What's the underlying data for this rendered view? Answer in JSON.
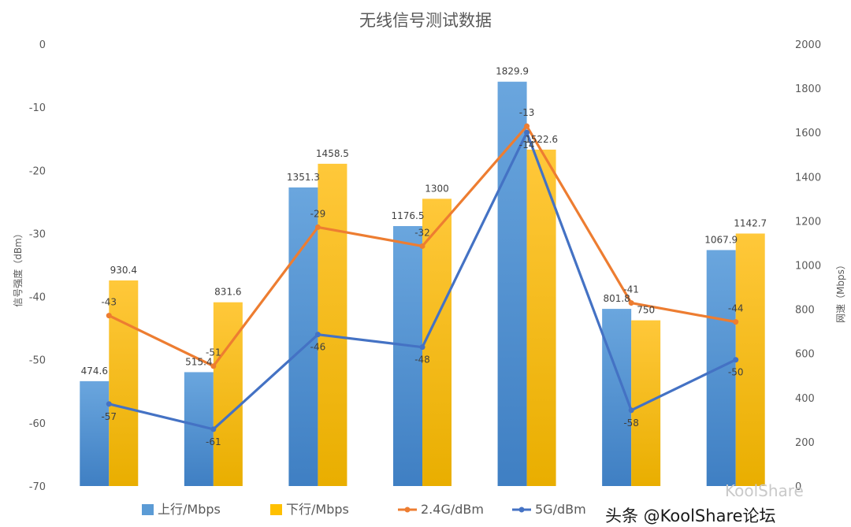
{
  "chart_data": {
    "type": "bar+line",
    "title": "无线信号测试数据",
    "y_left": {
      "label": "信号强度（dBm）",
      "ylim": [
        -70,
        0
      ],
      "ticks": [
        0,
        -10,
        -20,
        -30,
        -40,
        -50,
        -60,
        -70
      ]
    },
    "y_right": {
      "label": "网速（Mbps）",
      "ylim": [
        0,
        2000
      ],
      "ticks": [
        0,
        200,
        400,
        600,
        800,
        1000,
        1200,
        1400,
        1600,
        1800,
        2000
      ]
    },
    "categories": [
      "",
      "",
      "",
      "",
      "",
      "",
      ""
    ],
    "bar_series": [
      {
        "name": "上行/Mbps",
        "color": "#5b9bd5",
        "axis": "right",
        "values": [
          474.6,
          515.4,
          1351.3,
          1176.5,
          1829.9,
          801.8,
          1067.9
        ]
      },
      {
        "name": "下行/Mbps",
        "color": "#ffc000",
        "axis": "right",
        "values": [
          930.4,
          831.6,
          1458.5,
          1300,
          1522.6,
          750,
          1142.7
        ]
      }
    ],
    "line_series": [
      {
        "name": "2.4G/dBm",
        "color": "#ed7d31",
        "axis": "left",
        "values": [
          -43,
          -51,
          -29,
          -32,
          -13,
          -41,
          -44
        ]
      },
      {
        "name": "5G/dBm",
        "color": "#4472c4",
        "axis": "left",
        "values": [
          -57,
          -61,
          -46,
          -48,
          -14,
          -58,
          -50
        ]
      }
    ],
    "legend_position": "bottom",
    "grid": false
  },
  "watermark": {
    "text": "头条 @KoolShare论坛",
    "faint_text": "KoolShare"
  }
}
